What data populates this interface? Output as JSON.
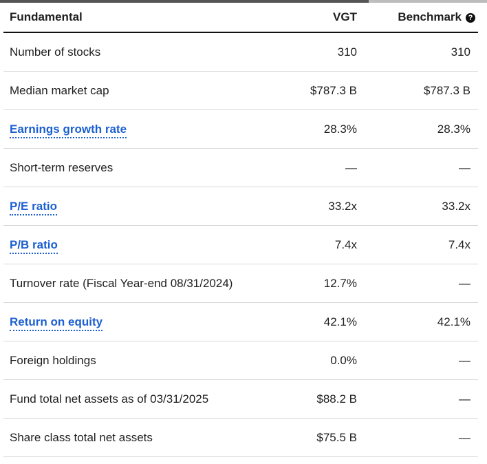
{
  "header": {
    "fundamental": "Fundamental",
    "vgt": "VGT",
    "benchmark": "Benchmark",
    "help_glyph": "?"
  },
  "rows": [
    {
      "label": "Number of stocks",
      "vgt": "310",
      "benchmark": "310"
    },
    {
      "label": "Median market cap",
      "vgt": "$787.3 B",
      "benchmark": "$787.3 B"
    },
    {
      "label": "Earnings growth rate",
      "vgt": "28.3%",
      "benchmark": "28.3%"
    },
    {
      "label": "Short-term reserves",
      "vgt": "—",
      "benchmark": "—"
    },
    {
      "label": "P/E ratio",
      "vgt": "33.2x",
      "benchmark": "33.2x"
    },
    {
      "label": "P/B ratio",
      "vgt": "7.4x",
      "benchmark": "7.4x"
    },
    {
      "label": "Turnover rate (Fiscal Year-end 08/31/2024)",
      "vgt": "12.7%",
      "benchmark": "—"
    },
    {
      "label": "Return on equity",
      "vgt": "42.1%",
      "benchmark": "42.1%"
    },
    {
      "label": "Foreign holdings",
      "vgt": "0.0%",
      "benchmark": "—"
    },
    {
      "label": "Fund total net assets as of 03/31/2025",
      "vgt": "$88.2 B",
      "benchmark": "—"
    },
    {
      "label": "Share class total net assets",
      "vgt": "$75.5 B",
      "benchmark": "—"
    }
  ],
  "colors": {
    "link": "#1b5fd1",
    "text": "#1f1f1f",
    "divider": "#d7d7d7"
  }
}
